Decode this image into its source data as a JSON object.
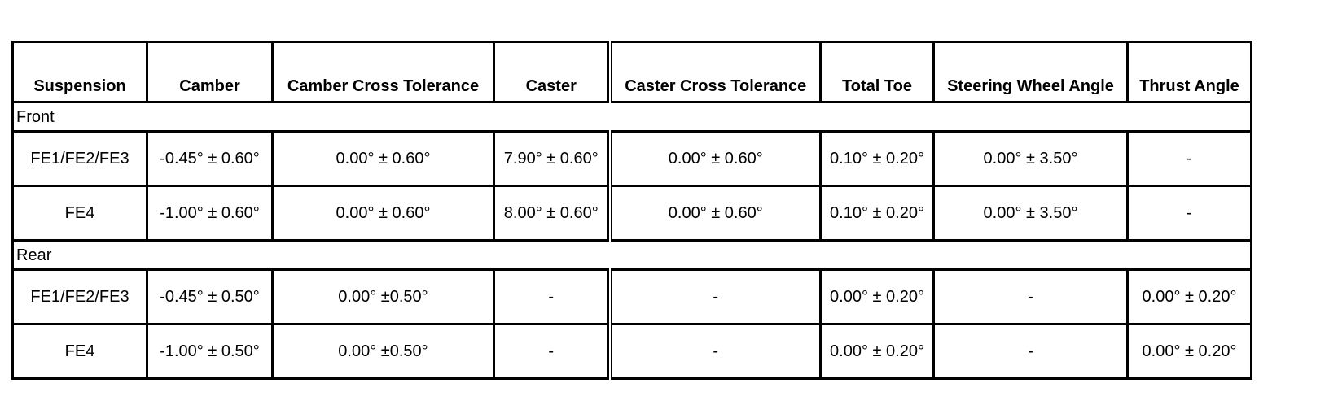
{
  "table": {
    "header": [
      "Suspension",
      "Camber",
      "Camber Cross Tolerance",
      "Caster",
      "Caster Cross Tolerance",
      "Total Toe",
      "Steering Wheel Angle",
      "Thrust Angle"
    ],
    "sections": [
      {
        "label": "Front",
        "rows": [
          [
            "FE1/FE2/FE3",
            "-0.45° ± 0.60°",
            "0.00° ± 0.60°",
            "7.90° ± 0.60°",
            "0.00° ± 0.60°",
            "0.10° ± 0.20°",
            "0.00° ± 3.50°",
            "-"
          ],
          [
            "FE4",
            "-1.00° ± 0.60°",
            "0.00° ± 0.60°",
            "8.00° ± 0.60°",
            "0.00° ± 0.60°",
            "0.10° ± 0.20°",
            "0.00° ± 3.50°",
            "-"
          ]
        ]
      },
      {
        "label": "Rear",
        "rows": [
          [
            "FE1/FE2/FE3",
            "-0.45° ± 0.50°",
            "0.00° ±0.50°",
            "-",
            "-",
            "0.00° ± 0.20°",
            "-",
            "0.00° ± 0.20°"
          ],
          [
            "FE4",
            "-1.00° ± 0.50°",
            "0.00° ±0.50°",
            "-",
            "-",
            "0.00° ± 0.20°",
            "-",
            "0.00° ± 0.20°"
          ]
        ]
      }
    ]
  }
}
